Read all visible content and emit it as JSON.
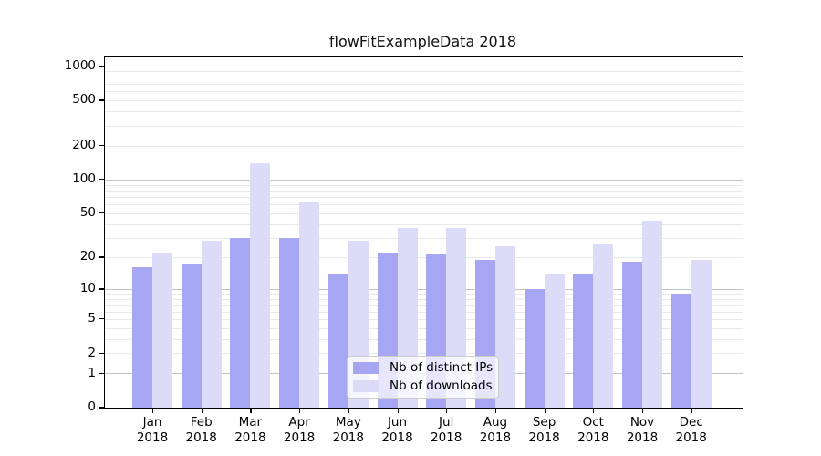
{
  "title": "flowFitExampleData 2018",
  "chart_data": {
    "type": "bar",
    "title": "flowFitExampleData 2018",
    "categories": [
      "Jan",
      "Feb",
      "Mar",
      "Apr",
      "May",
      "Jun",
      "Jul",
      "Aug",
      "Sep",
      "Oct",
      "Nov",
      "Dec"
    ],
    "year": "2018",
    "series": [
      {
        "name": "Nb of distinct IPs",
        "color": "#a6a6f2",
        "values": [
          16,
          17,
          30,
          30,
          14,
          22,
          21,
          19,
          10,
          14,
          18,
          9
        ]
      },
      {
        "name": "Nb of downloads",
        "color": "#dcdcf9",
        "values": [
          22,
          28,
          140,
          64,
          28,
          37,
          37,
          25,
          14,
          26,
          43,
          19
        ]
      }
    ],
    "xlabel": "",
    "ylabel": "",
    "yscale": "log1p",
    "ylim": [
      0,
      1215
    ],
    "yticks": [
      0,
      1,
      2,
      5,
      10,
      20,
      50,
      100,
      200,
      500,
      1000
    ],
    "gridlines_major": [
      1,
      10,
      100,
      1000
    ],
    "gridlines_minor": [
      2,
      3,
      4,
      5,
      6,
      7,
      8,
      9,
      20,
      30,
      40,
      50,
      60,
      70,
      80,
      90,
      200,
      300,
      400,
      500,
      600,
      700,
      800,
      900
    ],
    "grid": "horizontal",
    "legend_position": "lower center"
  }
}
